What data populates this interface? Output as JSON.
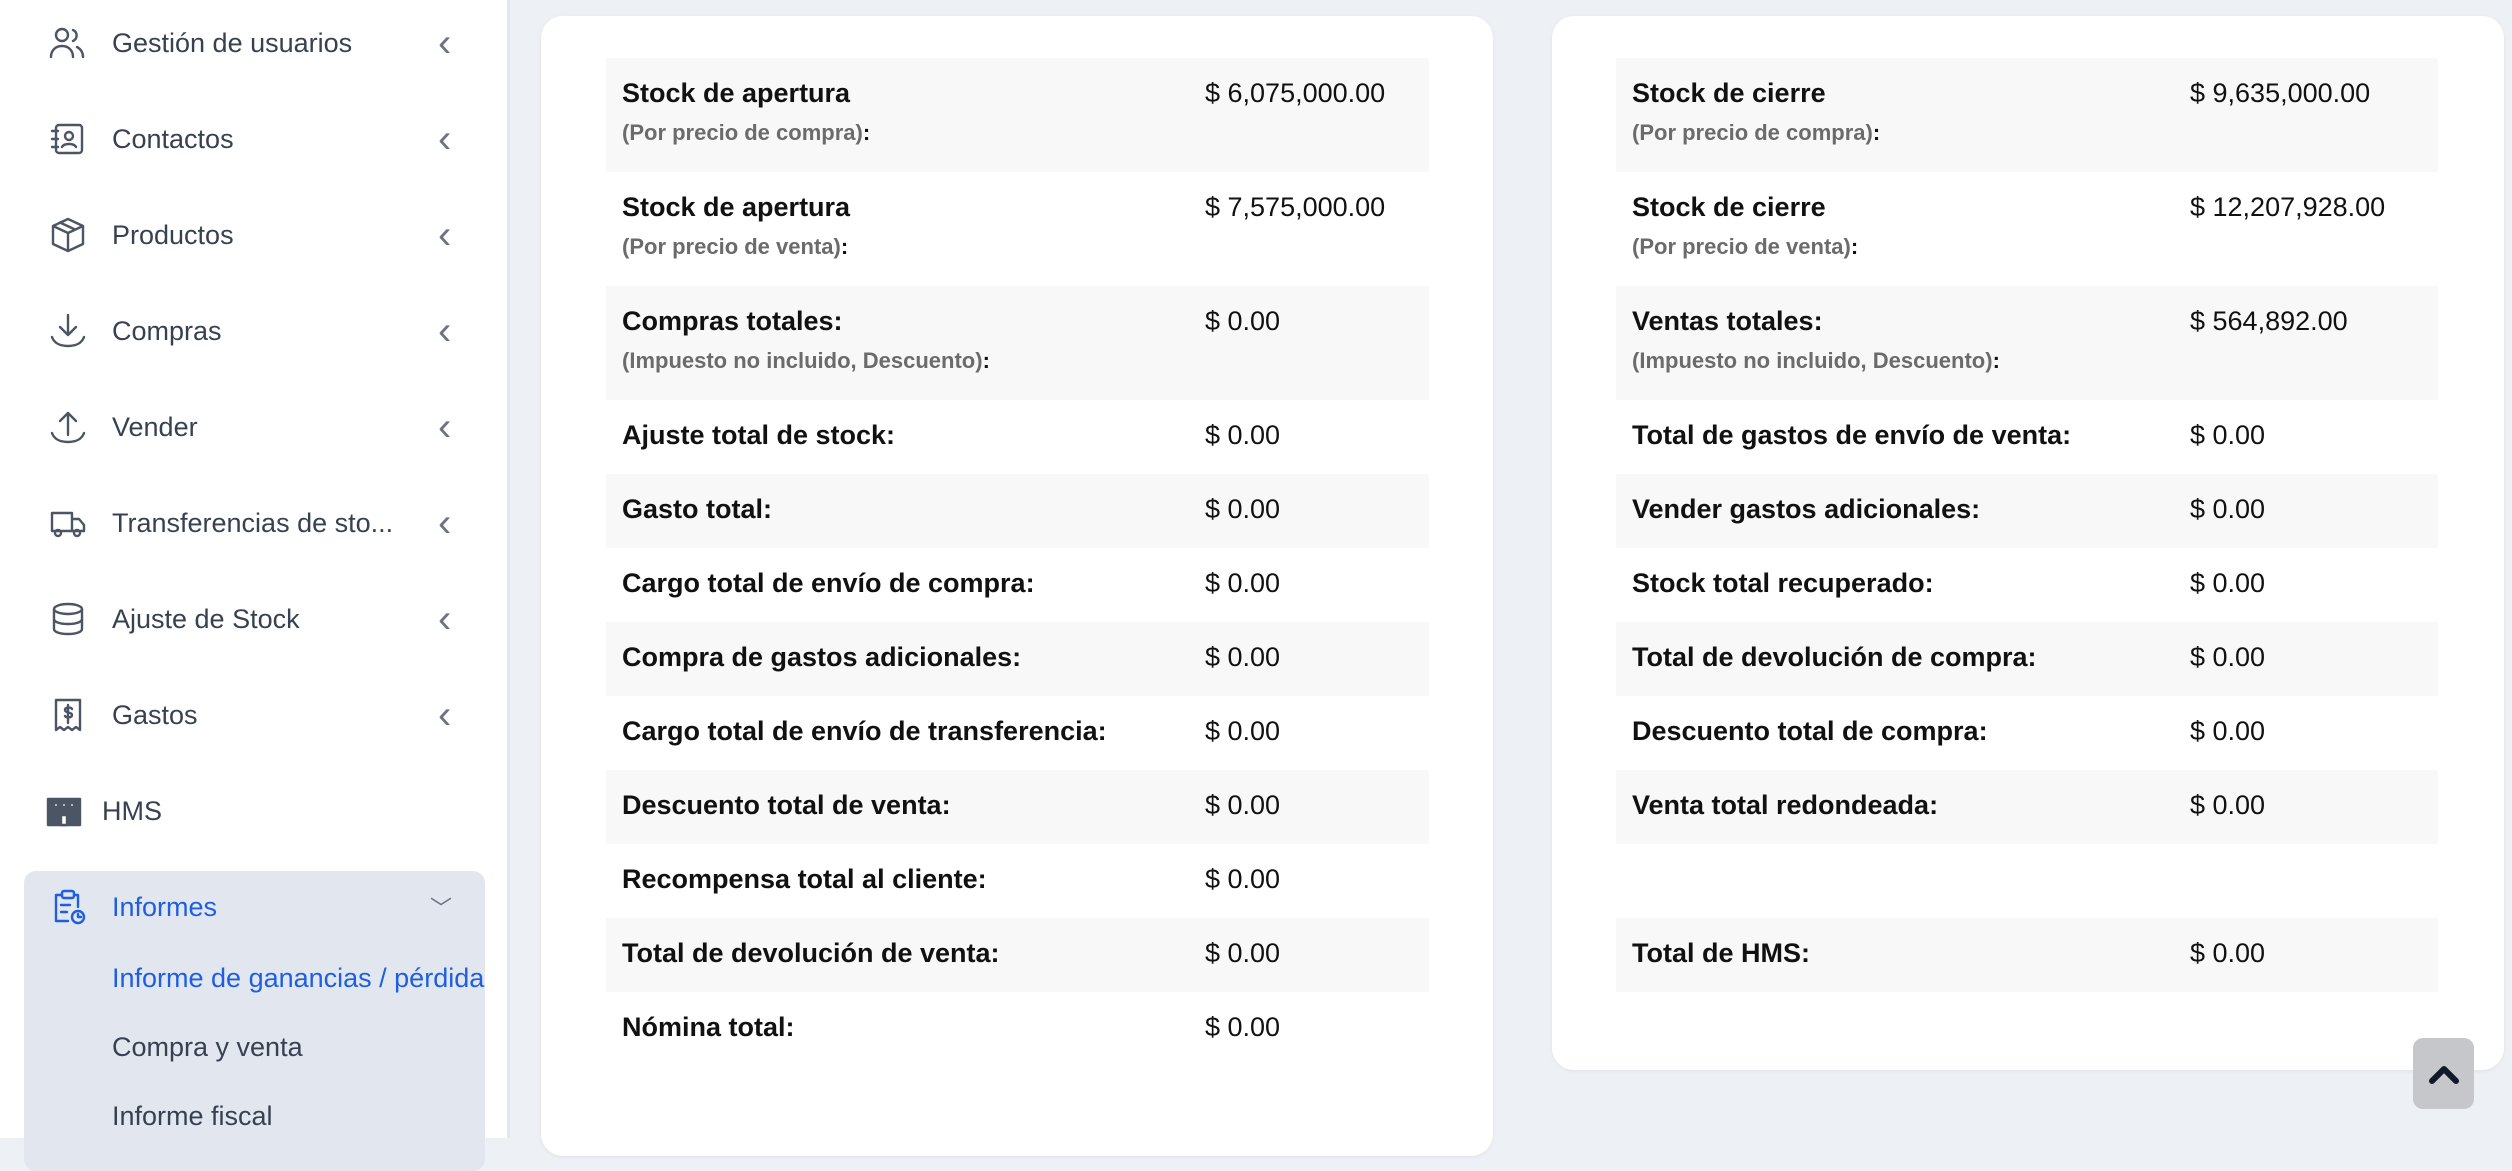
{
  "sidebar": {
    "items": [
      {
        "label": "Gestión de usuarios",
        "icon": "users-icon"
      },
      {
        "label": "Contactos",
        "icon": "contact-card-icon"
      },
      {
        "label": "Productos",
        "icon": "box-icon"
      },
      {
        "label": "Compras",
        "icon": "download-icon"
      },
      {
        "label": "Vender",
        "icon": "upload-icon"
      },
      {
        "label": "Transferencias de sto...",
        "icon": "truck-icon"
      },
      {
        "label": "Ajuste de Stock",
        "icon": "database-icon"
      },
      {
        "label": "Gastos",
        "icon": "receipt-dollar-icon"
      },
      {
        "label": "HMS",
        "icon": "building-icon"
      },
      {
        "label": "Informes",
        "icon": "clipboard-clock-icon"
      }
    ],
    "subitems": [
      "Informe de ganancias / pérdidas",
      "Compra y venta",
      "Informe fiscal"
    ],
    "accent": "#1d5fe0"
  },
  "left": {
    "rows": [
      {
        "label": "Stock de apertura",
        "sub": "(Por precio de compra)",
        "value": "$ 6,075,000.00"
      },
      {
        "label": "Stock de apertura",
        "sub": "(Por precio de venta)",
        "value": "$ 7,575,000.00"
      },
      {
        "label": "Compras totales:",
        "sub": "(Impuesto no incluido, Descuento)",
        "value": "$ 0.00"
      },
      {
        "label": "Ajuste total de stock:",
        "value": "$ 0.00"
      },
      {
        "label": "Gasto total:",
        "value": "$ 0.00"
      },
      {
        "label": "Cargo total de envío de compra:",
        "value": "$ 0.00"
      },
      {
        "label": "Compra de gastos adicionales:",
        "value": "$ 0.00"
      },
      {
        "label": "Cargo total de envío de transferencia:",
        "value": "$ 0.00"
      },
      {
        "label": "Descuento total de venta:",
        "value": "$ 0.00"
      },
      {
        "label": "Recompensa total al cliente:",
        "value": "$ 0.00"
      },
      {
        "label": "Total de devolución de venta:",
        "value": "$ 0.00"
      },
      {
        "label": "Nómina total:",
        "value": "$ 0.00"
      }
    ]
  },
  "right": {
    "rows": [
      {
        "label": "Stock de cierre",
        "sub": "(Por precio de compra)",
        "value": "$ 9,635,000.00"
      },
      {
        "label": "Stock de cierre",
        "sub": "(Por precio de venta)",
        "value": "$ 12,207,928.00"
      },
      {
        "label": "Ventas totales:",
        "sub": "(Impuesto no incluido, Descuento)",
        "value": "$ 564,892.00"
      },
      {
        "label": "Total de gastos de envío de venta:",
        "value": "$ 0.00"
      },
      {
        "label": "Vender gastos adicionales:",
        "value": "$ 0.00"
      },
      {
        "label": "Stock total recuperado:",
        "value": "$ 0.00"
      },
      {
        "label": "Total de devolución de compra:",
        "value": "$ 0.00"
      },
      {
        "label": "Descuento total de compra:",
        "value": "$ 0.00"
      },
      {
        "label": "Venta total redondeada:",
        "value": "$ 0.00"
      },
      {
        "label": "",
        "value": ""
      },
      {
        "label": "Total de HMS:",
        "value": "$ 0.00"
      }
    ]
  },
  "colon": ":"
}
